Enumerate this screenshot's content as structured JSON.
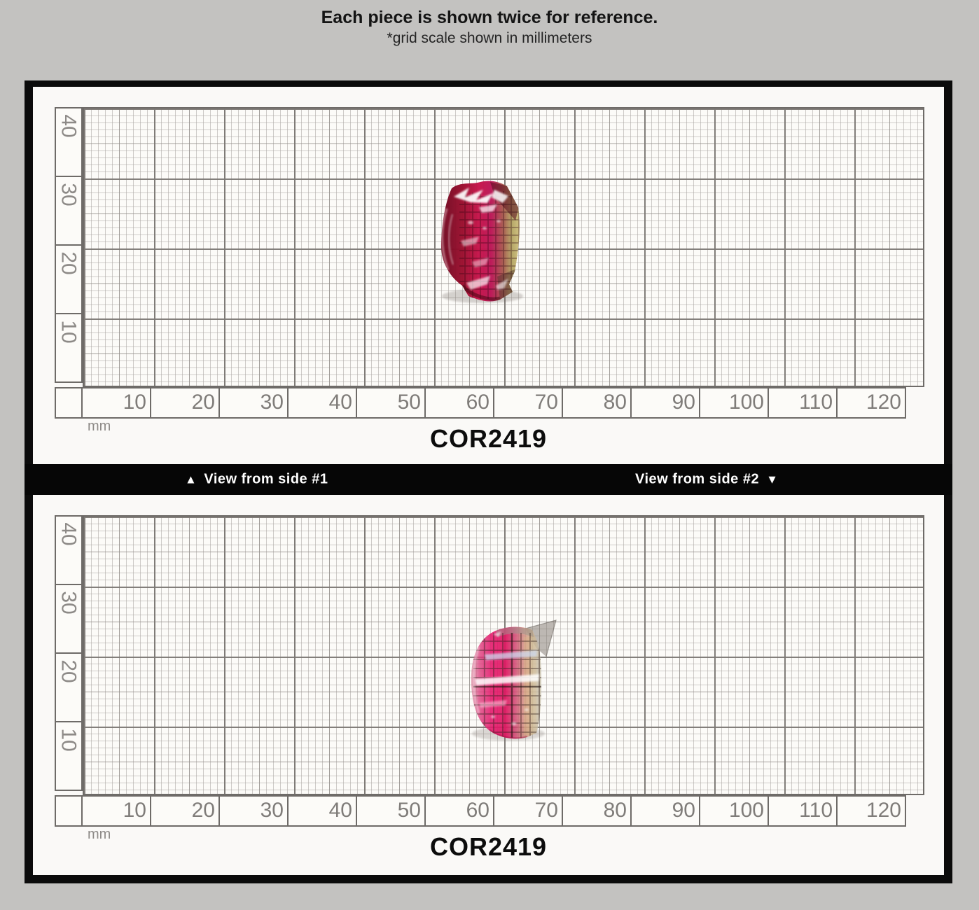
{
  "header": {
    "title": "Each piece is shown twice for reference.",
    "subtitle": "*grid scale shown in millimeters"
  },
  "divider": {
    "left_icon": "▲",
    "left_text": "View from side #1",
    "right_text": "View from side #2",
    "right_icon": "▼"
  },
  "ruler": {
    "unit": "mm",
    "x_ticks": [
      "10",
      "20",
      "30",
      "40",
      "50",
      "60",
      "70",
      "80",
      "90",
      "100",
      "110",
      "120"
    ],
    "y_ticks": [
      "40",
      "30",
      "20",
      "10"
    ]
  },
  "panels": [
    {
      "id_label": "COR2419"
    },
    {
      "id_label": "COR2419"
    }
  ],
  "colors": {
    "page_background": "#c3c2c0",
    "board_border": "#0b0b0b",
    "grid_paper": "#fcfbf8",
    "gem_dark_red": "#7a0a24",
    "gem_bright_red": "#c6134a",
    "gem_hot_pink": "#e5176b",
    "gem_olive_edge": "#b3a463",
    "gem_champagne_edge": "#cdbb96"
  }
}
